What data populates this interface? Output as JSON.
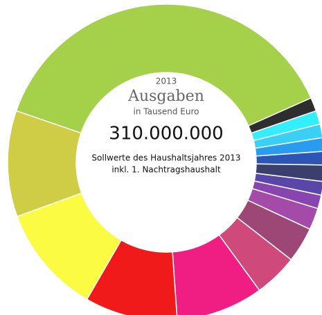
{
  "chart_data": {
    "type": "donut",
    "title": "Ausgaben",
    "year": "2013",
    "unit": "in Tausend Euro",
    "total": "310.000.000",
    "subtitle": [
      "Sollwerte des Haushaltsjahres 2013",
      "inkl. 1. Nachtragshaushalt"
    ],
    "categories": [
      null,
      null,
      null,
      null,
      null,
      null,
      null,
      null,
      null,
      null,
      null,
      null,
      null,
      null,
      null,
      null
    ],
    "values": [
      137,
      5,
      5,
      5,
      5,
      5,
      6,
      5,
      5,
      8,
      13,
      16,
      32,
      34,
      40,
      39
    ],
    "colors": [
      "#a5d04a",
      "#2e2e2e",
      "#33eeff",
      "#3ad0f5",
      "#2a9cf0",
      "#2d55b8",
      "#3a3f6e",
      "#5a46a8",
      "#8845b0",
      "#a44aa8",
      "#9c4775",
      "#cf4a7a",
      "#f01e82",
      "#f01a1a",
      "#fbfb44",
      "#cfcd45"
    ]
  }
}
